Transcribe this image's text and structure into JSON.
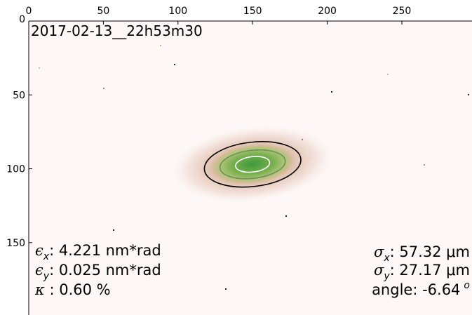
{
  "chart_data": {
    "type": "image",
    "title": "2017-02-13__22h53m30",
    "xlim": [
      0,
      297
    ],
    "ylim": [
      0,
      199
    ],
    "y_inverted": true,
    "xticks": [
      0,
      50,
      100,
      150,
      200,
      250
    ],
    "yticks": [
      0,
      50,
      100,
      150
    ],
    "beam": {
      "center": [
        150,
        97
      ],
      "angle": -6.64,
      "contours": [
        {
          "color": "#000000",
          "rx": 32.5,
          "ry": 15
        },
        {
          "color": "#6f8f5a",
          "rx": 22,
          "ry": 9.5
        },
        {
          "color": "#ffffff",
          "rx": 11.5,
          "ry": 5.2
        }
      ]
    },
    "annotations_left": [
      {
        "symbol": "ϵ",
        "sub": "x",
        "text": ": 4.221 nm*rad"
      },
      {
        "symbol": "ϵ",
        "sub": "y",
        "text": ": 0.025 nm*rad"
      },
      {
        "symbol": "κ",
        "text": " : 0.60 %"
      }
    ],
    "annotations_right": [
      {
        "symbol": "σ",
        "sub": "x",
        "text": ": 57.32 μm"
      },
      {
        "symbol": "σ",
        "sub": "y",
        "text": ": 27.17 μm"
      }
    ],
    "angle_label": "angle: ",
    "angle_unit": "o"
  }
}
